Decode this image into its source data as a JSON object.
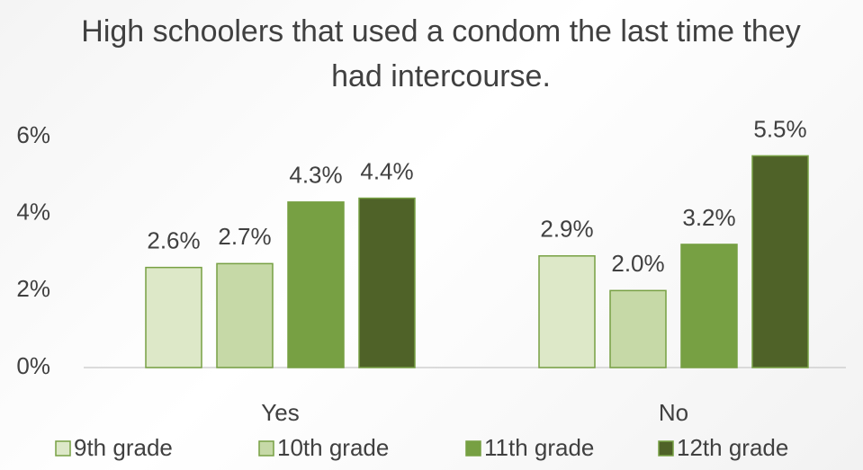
{
  "chart_data": {
    "type": "bar",
    "title": "High schoolers that used a condom the last time they had intercourse.",
    "categories": [
      "Yes",
      "No"
    ],
    "series": [
      {
        "name": "9th grade",
        "color": "#dde8c8",
        "values": [
          2.6,
          2.9
        ],
        "value_labels": [
          "2.6%",
          "2.9%"
        ]
      },
      {
        "name": "10th grade",
        "color": "#c6d9a7",
        "values": [
          2.7,
          2.0
        ],
        "value_labels": [
          "2.7%",
          "2.0%"
        ]
      },
      {
        "name": "11th grade",
        "color": "#77a043",
        "values": [
          4.3,
          3.2
        ],
        "value_labels": [
          "4.3%",
          "3.2%"
        ]
      },
      {
        "name": "12th grade",
        "color": "#4f6228",
        "values": [
          4.4,
          5.5
        ],
        "value_labels": [
          "4.4%",
          "5.5%"
        ]
      }
    ],
    "ylim": [
      0,
      6
    ],
    "yticks": [
      {
        "value": 0,
        "label": "0%"
      },
      {
        "value": 2,
        "label": "2%"
      },
      {
        "value": 4,
        "label": "4%"
      },
      {
        "value": 6,
        "label": "6%"
      }
    ],
    "grid": false,
    "legend": "bottom"
  }
}
